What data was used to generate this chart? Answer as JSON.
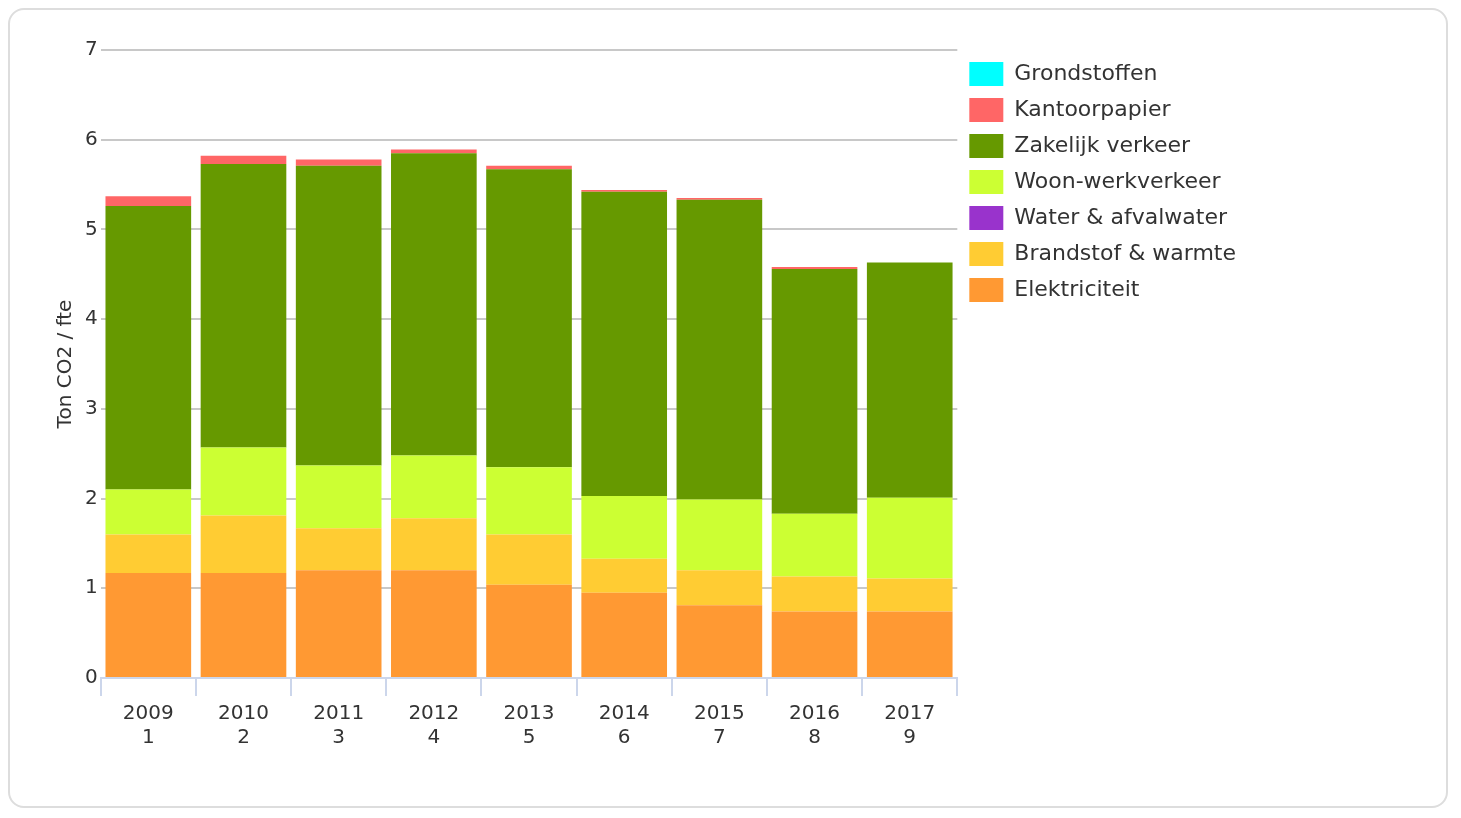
{
  "chart_data": {
    "type": "bar",
    "stacked": true,
    "ylabel": "Ton CO2 / fte",
    "categories": [
      "2009\n1",
      "2010\n2",
      "2011\n3",
      "2012\n4",
      "2013\n5",
      "2014\n6",
      "2015\n7",
      "2016\n8",
      "2017\n9"
    ],
    "series": [
      {
        "name": "Elektriciteit",
        "color": "#ff9933",
        "values": [
          1.17,
          1.17,
          1.2,
          1.2,
          1.04,
          0.95,
          0.81,
          0.74,
          0.74
        ]
      },
      {
        "name": "Brandstof & warmte",
        "color": "#ffcc33",
        "values": [
          0.43,
          0.64,
          0.47,
          0.58,
          0.56,
          0.38,
          0.39,
          0.39,
          0.37
        ]
      },
      {
        "name": "Water & afvalwater",
        "color": "#9933cc",
        "values": [
          0,
          0,
          0,
          0,
          0,
          0,
          0,
          0,
          0
        ]
      },
      {
        "name": "Woon-werkverkeer",
        "color": "#ccff33",
        "values": [
          0.5,
          0.76,
          0.7,
          0.7,
          0.75,
          0.7,
          0.79,
          0.7,
          0.9
        ]
      },
      {
        "name": "Zakelijk verkeer",
        "color": "#669900",
        "values": [
          3.16,
          3.16,
          3.34,
          3.37,
          3.32,
          3.39,
          3.34,
          2.73,
          2.62
        ]
      },
      {
        "name": "Kantoorpapier",
        "color": "#ff6666",
        "values": [
          0.11,
          0.09,
          0.07,
          0.04,
          0.04,
          0.02,
          0.02,
          0.02,
          0
        ]
      },
      {
        "name": "Grondstoffen",
        "color": "#00ffff",
        "values": [
          0,
          0,
          0,
          0,
          0,
          0,
          0,
          0,
          0
        ]
      }
    ],
    "ylim": [
      0,
      7
    ],
    "yticks": [
      0,
      1,
      2,
      3,
      4,
      5,
      6,
      7
    ],
    "grid": "y",
    "legend": "top right"
  }
}
